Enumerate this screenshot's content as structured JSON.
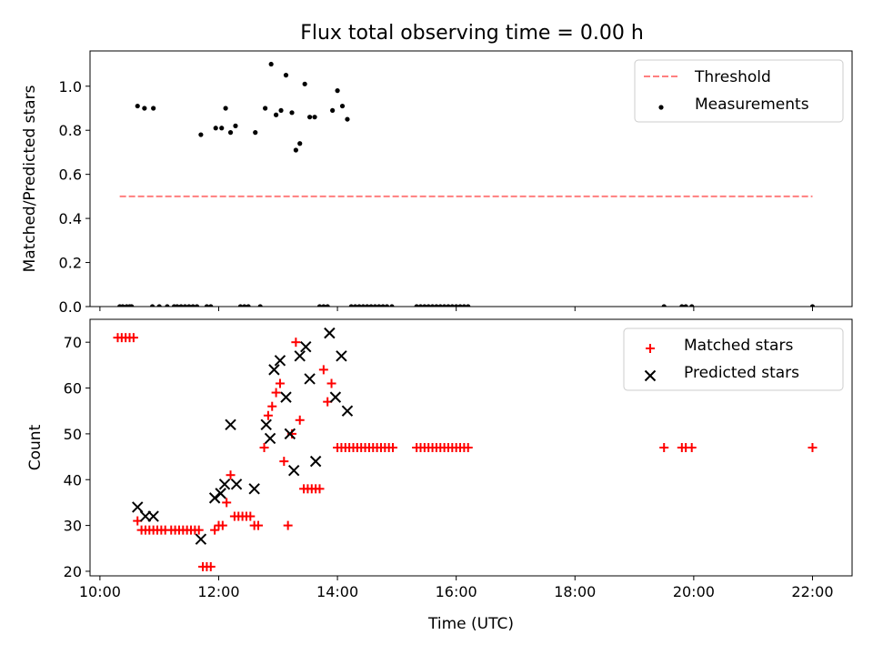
{
  "title": "Flux total observing time = 0.00 h",
  "colors": {
    "threshold": "#ff7f7f",
    "measurements": "#000000",
    "matched": "#ff0000",
    "predicted": "#000000"
  },
  "chart_data": [
    {
      "type": "scatter",
      "ylabel": "Matched/Predicted stars",
      "xlim": [
        "09:50",
        "22:40"
      ],
      "ylim": [
        0,
        1.16
      ],
      "yticks": [
        0.0,
        0.2,
        0.4,
        0.6,
        0.8,
        1.0
      ],
      "ytick_labels": [
        "0.0",
        "0.2",
        "0.4",
        "0.6",
        "0.8",
        "1.0"
      ],
      "grid": false,
      "legend": "upper right",
      "legend_entries": [
        "Threshold",
        "Measurements"
      ],
      "series": [
        {
          "name": "Threshold",
          "style": "dashed-line",
          "points": [
            [
              "10:20",
              0.5
            ],
            [
              "22:00",
              0.5
            ]
          ]
        },
        {
          "name": "Measurements",
          "style": "dot",
          "points": [
            [
              "10:20",
              0.0
            ],
            [
              "10:23",
              0.0
            ],
            [
              "10:27",
              0.0
            ],
            [
              "10:30",
              0.0
            ],
            [
              "10:32",
              0.0
            ],
            [
              "10:38",
              0.91
            ],
            [
              "10:45",
              0.9
            ],
            [
              "10:53",
              0.0
            ],
            [
              "10:54",
              0.9
            ],
            [
              "11:00",
              0.0
            ],
            [
              "11:08",
              0.0
            ],
            [
              "11:15",
              0.0
            ],
            [
              "11:18",
              0.0
            ],
            [
              "11:22",
              0.0
            ],
            [
              "11:26",
              0.0
            ],
            [
              "11:30",
              0.0
            ],
            [
              "11:34",
              0.0
            ],
            [
              "11:38",
              0.0
            ],
            [
              "11:42",
              0.78
            ],
            [
              "11:48",
              0.0
            ],
            [
              "11:52",
              0.0
            ],
            [
              "11:57",
              0.81
            ],
            [
              "12:03",
              0.81
            ],
            [
              "12:07",
              0.9
            ],
            [
              "12:12",
              0.79
            ],
            [
              "12:17",
              0.82
            ],
            [
              "12:22",
              0.0
            ],
            [
              "12:26",
              0.0
            ],
            [
              "12:30",
              0.0
            ],
            [
              "12:37",
              0.79
            ],
            [
              "12:42",
              0.0
            ],
            [
              "12:47",
              0.9
            ],
            [
              "12:53",
              1.1
            ],
            [
              "12:58",
              0.87
            ],
            [
              "13:03",
              0.89
            ],
            [
              "13:08",
              1.05
            ],
            [
              "13:14",
              0.88
            ],
            [
              "13:18",
              0.71
            ],
            [
              "13:22",
              0.74
            ],
            [
              "13:27",
              1.01
            ],
            [
              "13:32",
              0.86
            ],
            [
              "13:37",
              0.86
            ],
            [
              "13:42",
              0.0
            ],
            [
              "13:46",
              0.0
            ],
            [
              "13:50",
              0.0
            ],
            [
              "13:55",
              0.89
            ],
            [
              "14:00",
              0.98
            ],
            [
              "14:05",
              0.91
            ],
            [
              "14:10",
              0.85
            ],
            [
              "14:14",
              0.0
            ],
            [
              "14:18",
              0.0
            ],
            [
              "14:22",
              0.0
            ],
            [
              "14:26",
              0.0
            ],
            [
              "14:30",
              0.0
            ],
            [
              "14:34",
              0.0
            ],
            [
              "14:38",
              0.0
            ],
            [
              "14:42",
              0.0
            ],
            [
              "14:46",
              0.0
            ],
            [
              "14:50",
              0.0
            ],
            [
              "14:55",
              0.0
            ],
            [
              "15:20",
              0.0
            ],
            [
              "15:24",
              0.0
            ],
            [
              "15:28",
              0.0
            ],
            [
              "15:32",
              0.0
            ],
            [
              "15:36",
              0.0
            ],
            [
              "15:40",
              0.0
            ],
            [
              "15:44",
              0.0
            ],
            [
              "15:48",
              0.0
            ],
            [
              "15:52",
              0.0
            ],
            [
              "15:56",
              0.0
            ],
            [
              "16:00",
              0.0
            ],
            [
              "16:04",
              0.0
            ],
            [
              "16:08",
              0.0
            ],
            [
              "16:12",
              0.0
            ],
            [
              "19:30",
              0.0
            ],
            [
              "19:48",
              0.0
            ],
            [
              "19:52",
              0.0
            ],
            [
              "19:58",
              0.0
            ],
            [
              "22:00",
              0.0
            ]
          ]
        }
      ]
    },
    {
      "type": "scatter",
      "xlabel": "Time (UTC)",
      "ylabel": "Count",
      "xlim": [
        "09:50",
        "22:40"
      ],
      "ylim": [
        19,
        75
      ],
      "xticks": [
        "10:00",
        "12:00",
        "14:00",
        "16:00",
        "18:00",
        "20:00",
        "22:00"
      ],
      "yticks": [
        20,
        30,
        40,
        50,
        60,
        70
      ],
      "grid": false,
      "legend": "upper right",
      "legend_entries": [
        "Matched stars",
        "Predicted stars"
      ],
      "series": [
        {
          "name": "Matched stars",
          "marker": "plus",
          "points": [
            [
              "10:18",
              71
            ],
            [
              "10:22",
              71
            ],
            [
              "10:26",
              71
            ],
            [
              "10:30",
              71
            ],
            [
              "10:34",
              71
            ],
            [
              "10:38",
              31
            ],
            [
              "10:42",
              29
            ],
            [
              "10:46",
              29
            ],
            [
              "10:50",
              29
            ],
            [
              "10:54",
              29
            ],
            [
              "10:58",
              29
            ],
            [
              "11:02",
              29
            ],
            [
              "11:06",
              29
            ],
            [
              "11:12",
              29
            ],
            [
              "11:16",
              29
            ],
            [
              "11:20",
              29
            ],
            [
              "11:24",
              29
            ],
            [
              "11:28",
              29
            ],
            [
              "11:32",
              29
            ],
            [
              "11:36",
              29
            ],
            [
              "11:40",
              29
            ],
            [
              "11:44",
              21
            ],
            [
              "11:48",
              21
            ],
            [
              "11:52",
              21
            ],
            [
              "11:56",
              29
            ],
            [
              "12:00",
              30
            ],
            [
              "12:04",
              30
            ],
            [
              "12:08",
              35
            ],
            [
              "12:12",
              41
            ],
            [
              "12:16",
              32
            ],
            [
              "12:20",
              32
            ],
            [
              "12:24",
              32
            ],
            [
              "12:28",
              32
            ],
            [
              "12:32",
              32
            ],
            [
              "12:36",
              30
            ],
            [
              "12:40",
              30
            ],
            [
              "12:46",
              47
            ],
            [
              "12:50",
              54
            ],
            [
              "12:54",
              56
            ],
            [
              "12:58",
              59
            ],
            [
              "13:02",
              61
            ],
            [
              "13:06",
              44
            ],
            [
              "13:10",
              30
            ],
            [
              "13:14",
              50
            ],
            [
              "13:18",
              70
            ],
            [
              "13:22",
              53
            ],
            [
              "13:26",
              38
            ],
            [
              "13:30",
              38
            ],
            [
              "13:34",
              38
            ],
            [
              "13:38",
              38
            ],
            [
              "13:42",
              38
            ],
            [
              "13:46",
              64
            ],
            [
              "13:50",
              57
            ],
            [
              "13:54",
              61
            ],
            [
              "14:00",
              47
            ],
            [
              "14:04",
              47
            ],
            [
              "14:08",
              47
            ],
            [
              "14:12",
              47
            ],
            [
              "14:16",
              47
            ],
            [
              "14:20",
              47
            ],
            [
              "14:24",
              47
            ],
            [
              "14:28",
              47
            ],
            [
              "14:32",
              47
            ],
            [
              "14:36",
              47
            ],
            [
              "14:40",
              47
            ],
            [
              "14:44",
              47
            ],
            [
              "14:48",
              47
            ],
            [
              "14:52",
              47
            ],
            [
              "14:56",
              47
            ],
            [
              "15:20",
              47
            ],
            [
              "15:24",
              47
            ],
            [
              "15:28",
              47
            ],
            [
              "15:32",
              47
            ],
            [
              "15:36",
              47
            ],
            [
              "15:40",
              47
            ],
            [
              "15:44",
              47
            ],
            [
              "15:48",
              47
            ],
            [
              "15:52",
              47
            ],
            [
              "15:56",
              47
            ],
            [
              "16:00",
              47
            ],
            [
              "16:04",
              47
            ],
            [
              "16:08",
              47
            ],
            [
              "16:12",
              47
            ],
            [
              "19:30",
              47
            ],
            [
              "19:48",
              47
            ],
            [
              "19:52",
              47
            ],
            [
              "19:58",
              47
            ],
            [
              "22:00",
              47
            ]
          ]
        },
        {
          "name": "Predicted stars",
          "marker": "x",
          "points": [
            [
              "10:38",
              34
            ],
            [
              "10:46",
              32
            ],
            [
              "10:54",
              32
            ],
            [
              "11:42",
              27
            ],
            [
              "11:56",
              36
            ],
            [
              "12:02",
              37
            ],
            [
              "12:06",
              39
            ],
            [
              "12:12",
              52
            ],
            [
              "12:18",
              39
            ],
            [
              "12:36",
              38
            ],
            [
              "12:48",
              52
            ],
            [
              "12:52",
              49
            ],
            [
              "12:56",
              64
            ],
            [
              "13:02",
              66
            ],
            [
              "13:08",
              58
            ],
            [
              "13:12",
              50
            ],
            [
              "13:16",
              42
            ],
            [
              "13:22",
              67
            ],
            [
              "13:28",
              69
            ],
            [
              "13:32",
              62
            ],
            [
              "13:38",
              44
            ],
            [
              "13:52",
              72
            ],
            [
              "13:58",
              58
            ],
            [
              "14:04",
              67
            ],
            [
              "14:10",
              55
            ]
          ]
        }
      ]
    }
  ]
}
